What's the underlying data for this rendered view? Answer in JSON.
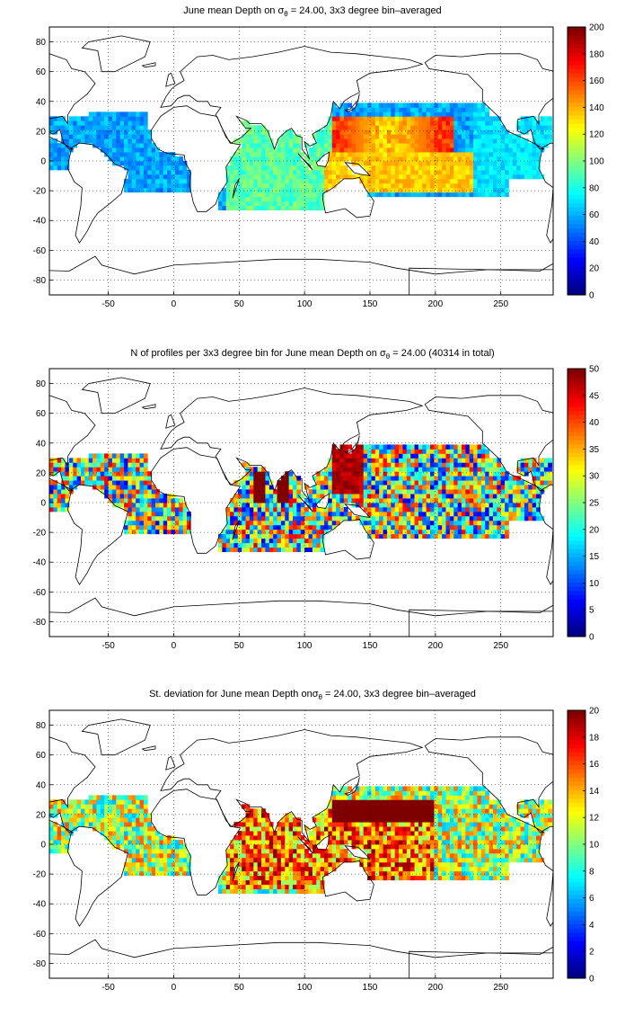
{
  "chart_data": [
    {
      "type": "heatmap",
      "title_prefix": "June mean Depth on ",
      "title_sigma": "σ",
      "title_sub": "θ",
      "title_suffix": " = 24.00, 3x3 degree bin–averaged",
      "xlim": [
        -95,
        290
      ],
      "ylim": [
        -90,
        90
      ],
      "xticks": [
        -50,
        0,
        50,
        100,
        150,
        200,
        250
      ],
      "yticks": [
        -80,
        -60,
        -40,
        -20,
        0,
        20,
        40,
        60,
        80
      ],
      "grid": true,
      "colormap": "jet",
      "clim": [
        0,
        200
      ],
      "cticks": [
        0,
        20,
        40,
        60,
        80,
        100,
        120,
        140,
        160,
        180,
        200
      ],
      "variable": "depth"
    },
    {
      "type": "heatmap",
      "title_prefix": "N of profiles per 3x3 degree bin for June mean Depth on ",
      "title_sigma": "σ",
      "title_sub": "θ",
      "title_suffix": " = 24.00 (40314 in total)",
      "xlim": [
        -95,
        290
      ],
      "ylim": [
        -90,
        90
      ],
      "xticks": [
        -50,
        0,
        50,
        100,
        150,
        200,
        250
      ],
      "yticks": [
        -80,
        -60,
        -40,
        -20,
        0,
        20,
        40,
        60,
        80
      ],
      "grid": true,
      "colormap": "jet",
      "clim": [
        0,
        50
      ],
      "cticks": [
        0,
        5,
        10,
        15,
        20,
        25,
        30,
        35,
        40,
        45,
        50
      ],
      "variable": "count"
    },
    {
      "type": "heatmap",
      "title_prefix": "St. deviation for June mean Depth on",
      "title_sigma": "σ",
      "title_sub": "θ",
      "title_suffix": " = 24.00, 3x3 degree bin–averaged",
      "xlim": [
        -95,
        290
      ],
      "ylim": [
        -90,
        90
      ],
      "xticks": [
        -50,
        0,
        50,
        100,
        150,
        200,
        250
      ],
      "yticks": [
        -80,
        -60,
        -40,
        -20,
        0,
        20,
        40,
        60,
        80
      ],
      "grid": true,
      "colormap": "jet",
      "clim": [
        0,
        20
      ],
      "cticks": [
        0,
        2,
        4,
        6,
        8,
        10,
        12,
        14,
        16,
        18,
        20
      ],
      "variable": "std"
    }
  ]
}
